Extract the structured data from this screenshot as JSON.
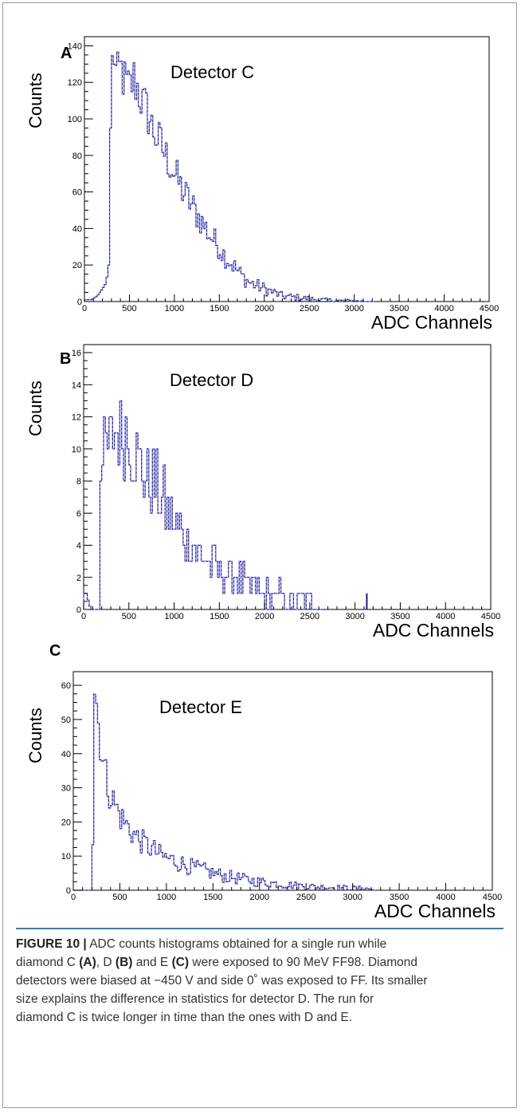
{
  "chart_data": [
    {
      "type": "histogram",
      "panel_letter": "A",
      "annotation": "Detector C",
      "ylabel": "Counts",
      "xlabel": "ADC Channels",
      "xlim": [
        0,
        4500
      ],
      "ylim": [
        0,
        145
      ],
      "xticks": [
        "0",
        "500",
        "1000",
        "1500",
        "2000",
        "2500",
        "3000",
        "3500",
        "4000",
        "4500"
      ],
      "yticks": [
        "0",
        "20",
        "40",
        "60",
        "80",
        "100",
        "120",
        "140"
      ],
      "ytick_values": [
        0,
        20,
        40,
        60,
        80,
        100,
        120,
        140
      ],
      "bin_width": 20,
      "points": [
        [
          80,
          1
        ],
        [
          140,
          3
        ],
        [
          200,
          7
        ],
        [
          240,
          10
        ],
        [
          270,
          20
        ],
        [
          290,
          95
        ],
        [
          310,
          130
        ],
        [
          330,
          136
        ],
        [
          360,
          120
        ],
        [
          400,
          128
        ],
        [
          450,
          120
        ],
        [
          500,
          116
        ],
        [
          550,
          122
        ],
        [
          600,
          116
        ],
        [
          650,
          108
        ],
        [
          700,
          104
        ],
        [
          750,
          96
        ],
        [
          800,
          90
        ],
        [
          850,
          86
        ],
        [
          900,
          80
        ],
        [
          950,
          76
        ],
        [
          1000,
          70
        ],
        [
          1050,
          65
        ],
        [
          1100,
          60
        ],
        [
          1150,
          56
        ],
        [
          1200,
          52
        ],
        [
          1250,
          48
        ],
        [
          1300,
          44
        ],
        [
          1350,
          40
        ],
        [
          1400,
          36
        ],
        [
          1450,
          33
        ],
        [
          1500,
          30
        ],
        [
          1550,
          26
        ],
        [
          1600,
          23
        ],
        [
          1650,
          20
        ],
        [
          1700,
          17
        ],
        [
          1750,
          14
        ],
        [
          1800,
          12
        ],
        [
          1850,
          10
        ],
        [
          1900,
          9
        ],
        [
          1950,
          8
        ],
        [
          2000,
          7
        ],
        [
          2050,
          6
        ],
        [
          2100,
          5
        ],
        [
          2150,
          4
        ],
        [
          2200,
          3
        ],
        [
          2300,
          2.5
        ],
        [
          2400,
          2
        ],
        [
          2500,
          1.5
        ],
        [
          2600,
          1
        ],
        [
          2800,
          0.5
        ],
        [
          3000,
          0.3
        ],
        [
          3200,
          0
        ]
      ],
      "noise": 8,
      "noise_min_x": 300,
      "cutoff": 3200,
      "sparse": []
    },
    {
      "type": "histogram",
      "panel_letter": "B",
      "annotation": "Detector D",
      "ylabel": "Counts",
      "xlabel": "ADC Channels",
      "xlim": [
        0,
        4500
      ],
      "ylim": [
        0,
        16.5
      ],
      "xticks": [
        "0",
        "500",
        "1000",
        "1500",
        "2000",
        "2500",
        "3000",
        "3500",
        "4000",
        "4500"
      ],
      "yticks": [
        "0",
        "2",
        "4",
        "6",
        "8",
        "10",
        "12",
        "14",
        "16"
      ],
      "ytick_values": [
        0,
        2,
        4,
        6,
        8,
        10,
        12,
        14,
        16
      ],
      "bin_width": 20,
      "points": [
        [
          30,
          1
        ],
        [
          80,
          0
        ],
        [
          170,
          0
        ],
        [
          190,
          8
        ],
        [
          250,
          10
        ],
        [
          300,
          10
        ],
        [
          350,
          11
        ],
        [
          400,
          11
        ],
        [
          450,
          11
        ],
        [
          500,
          11
        ],
        [
          550,
          10
        ],
        [
          600,
          9.5
        ],
        [
          650,
          9
        ],
        [
          700,
          8.5
        ],
        [
          750,
          8
        ],
        [
          800,
          7.5
        ],
        [
          850,
          7
        ],
        [
          900,
          6.5
        ],
        [
          950,
          6
        ],
        [
          1000,
          5.5
        ],
        [
          1050,
          5
        ],
        [
          1100,
          4.7
        ],
        [
          1150,
          4.3
        ],
        [
          1200,
          4
        ],
        [
          1250,
          3.6
        ],
        [
          1300,
          3.3
        ],
        [
          1350,
          3
        ],
        [
          1400,
          2.8
        ],
        [
          1450,
          2.6
        ],
        [
          1500,
          2.4
        ],
        [
          1600,
          2.1
        ],
        [
          1700,
          1.8
        ],
        [
          1800,
          1.5
        ],
        [
          1900,
          1.3
        ],
        [
          2000,
          1.1
        ],
        [
          2100,
          1
        ],
        [
          2200,
          0.9
        ],
        [
          2300,
          0.8
        ],
        [
          2400,
          0.7
        ],
        [
          2500,
          0.6
        ],
        [
          2600,
          0.6
        ],
        [
          2620,
          0
        ]
      ],
      "noise": 5,
      "noise_min_x": 200,
      "cutoff": 2620,
      "sparse": [
        [
          3130,
          1
        ]
      ]
    },
    {
      "type": "histogram",
      "panel_letter": "C",
      "annotation": "Detector E",
      "ylabel": "Counts",
      "xlabel": "ADC Channels",
      "xlim": [
        0,
        4500
      ],
      "ylim": [
        0,
        64
      ],
      "xticks": [
        "0",
        "500",
        "1000",
        "1500",
        "2000",
        "2500",
        "3000",
        "3500",
        "4000",
        "4500"
      ],
      "yticks": [
        "0",
        "10",
        "20",
        "30",
        "40",
        "50",
        "60"
      ],
      "ytick_values": [
        0,
        10,
        20,
        30,
        40,
        50,
        60
      ],
      "bin_width": 20,
      "points": [
        [
          200,
          0
        ],
        [
          215,
          20
        ],
        [
          225,
          58
        ],
        [
          250,
          55
        ],
        [
          280,
          46
        ],
        [
          320,
          38
        ],
        [
          360,
          32
        ],
        [
          400,
          28
        ],
        [
          450,
          25
        ],
        [
          500,
          22
        ],
        [
          550,
          20
        ],
        [
          600,
          18
        ],
        [
          650,
          16.5
        ],
        [
          700,
          15
        ],
        [
          750,
          14
        ],
        [
          800,
          13
        ],
        [
          850,
          12
        ],
        [
          900,
          11
        ],
        [
          950,
          10
        ],
        [
          1000,
          9.5
        ],
        [
          1100,
          8.5
        ],
        [
          1200,
          7.5
        ],
        [
          1300,
          6.5
        ],
        [
          1400,
          5.8
        ],
        [
          1500,
          5
        ],
        [
          1600,
          4.3
        ],
        [
          1700,
          3.8
        ],
        [
          1800,
          3.3
        ],
        [
          1900,
          2.9
        ],
        [
          2000,
          2.5
        ],
        [
          2100,
          2.2
        ],
        [
          2200,
          1.9
        ],
        [
          2300,
          1.6
        ],
        [
          2400,
          1.4
        ],
        [
          2500,
          1.2
        ],
        [
          2600,
          1
        ],
        [
          2700,
          0.9
        ],
        [
          2800,
          0.8
        ],
        [
          2900,
          0.7
        ],
        [
          3000,
          0.6
        ],
        [
          3100,
          0.5
        ],
        [
          3200,
          0.4
        ],
        [
          3220,
          0
        ]
      ],
      "noise": 6,
      "noise_min_x": 240,
      "cutoff": 3220,
      "sparse": []
    }
  ],
  "caption": {
    "label": "FIGURE 10 |",
    "segments": [
      {
        "text": " ADC counts histograms obtained for a single run while",
        "bold": false,
        "br": true
      },
      {
        "text": "diamond C ",
        "bold": false
      },
      {
        "text": "(A)",
        "bold": true
      },
      {
        "text": ", D ",
        "bold": false
      },
      {
        "text": "(B)",
        "bold": true
      },
      {
        "text": " and E ",
        "bold": false
      },
      {
        "text": "(C)",
        "bold": true
      },
      {
        "text": " were exposed to 90 MeV FF98. Diamond",
        "bold": false,
        "br": true
      },
      {
        "text": "detectors were biased at −450 V and side 0˚ was exposed to FF. Its smaller",
        "bold": false,
        "br": true
      },
      {
        "text": "size explains the difference in statistics for detector D. The run for",
        "bold": false,
        "br": true
      },
      {
        "text": "diamond C is twice longer in time than the ones with D and E.",
        "bold": false
      }
    ]
  },
  "colors": {
    "line_dark": "#1a1a8c",
    "line_light": "#8a8ad8",
    "axis": "#000000",
    "caption_rule": "#2f7fbf"
  }
}
